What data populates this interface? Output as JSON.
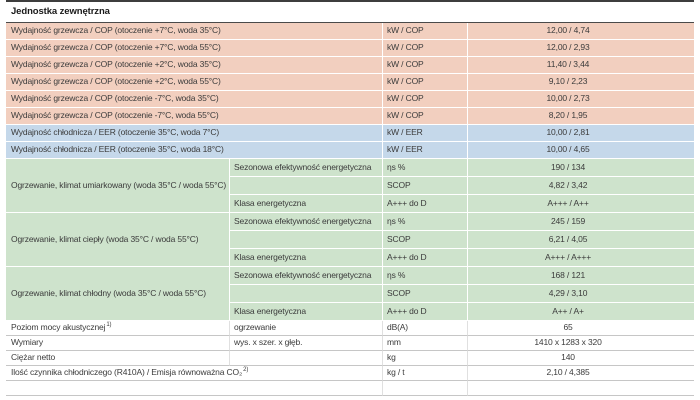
{
  "section_title": "Jednostka zewnętrzna",
  "colors": {
    "heating": "#f2cfbf",
    "cooling": "#c5d8ea",
    "seasonal": "#cee3cc"
  },
  "rows": [
    {
      "label": "Wydajność grzewcza / COP (otoczenie +7°C, woda 35°C)",
      "unit": "kW / COP",
      "value": "12,00 / 4,74"
    },
    {
      "label": "Wydajność grzewcza / COP (otoczenie +7°C, woda 55°C)",
      "unit": "kW / COP",
      "value": "12,00 / 2,93"
    },
    {
      "label": "Wydajność grzewcza / COP (otoczenie +2°C, woda 35°C)",
      "unit": "kW / COP",
      "value": "11,40 / 3,44"
    },
    {
      "label": "Wydajność grzewcza / COP (otoczenie +2°C, woda 55°C)",
      "unit": "kW / COP",
      "value": "9,10 / 2,23"
    },
    {
      "label": "Wydajność grzewcza / COP (otoczenie -7°C, woda 35°C)",
      "unit": "kW / COP",
      "value": "10,00 / 2,73"
    },
    {
      "label": "Wydajność grzewcza / COP (otoczenie -7°C, woda 55°C)",
      "unit": "kW / COP",
      "value": "8,20 / 1,95"
    },
    {
      "label": "Wydajność chłodnicza / EER (otoczenie 35°C, woda 7°C)",
      "unit": "kW / EER",
      "value": "10,00 / 2,81"
    },
    {
      "label": "Wydajność chłodnicza / EER (otoczenie 35°C, woda 18°C)",
      "unit": "kW / EER",
      "value": "10,00 / 4,65"
    }
  ],
  "groups": [
    {
      "label": "Ogrzewanie, klimat umiarkowany (woda 35°C / woda 55°C)",
      "rows": [
        {
          "sub": "Sezonowa efektywność energetyczna",
          "unit": "ηs %",
          "value": "190 / 134"
        },
        {
          "sub": "",
          "unit": "SCOP",
          "value": "4,82 / 3,42"
        },
        {
          "sub": "Klasa energetyczna",
          "unit": "A+++ do D",
          "value": "A+++ / A++"
        }
      ]
    },
    {
      "label": "Ogrzewanie, klimat ciepły (woda 35°C / woda 55°C)",
      "rows": [
        {
          "sub": "Sezonowa efektywność energetyczna",
          "unit": "ηs %",
          "value": "245 / 159"
        },
        {
          "sub": "",
          "unit": "SCOP",
          "value": "6,21 / 4,05"
        },
        {
          "sub": "Klasa energetyczna",
          "unit": "A+++ do D",
          "value": "A+++ / A+++"
        }
      ]
    },
    {
      "label": "Ogrzewanie, klimat chłodny (woda 35°C / woda 55°C)",
      "rows": [
        {
          "sub": "Sezonowa efektywność energetyczna",
          "unit": "ηs %",
          "value": "168 / 121"
        },
        {
          "sub": "",
          "unit": "SCOP",
          "value": "4,29 / 3,10"
        },
        {
          "sub": "Klasa energetyczna",
          "unit": "A+++ do D",
          "value": "A++ / A+"
        }
      ]
    }
  ],
  "info_rows": [
    {
      "label": "Poziom mocy akustycznej",
      "sup": "1)",
      "sub": "ogrzewanie",
      "unit": "dB(A)",
      "value": "65"
    },
    {
      "label": "Wymiary",
      "sup": "",
      "sub": "wys. x szer. x głęb.",
      "unit": "mm",
      "value": "1410 x 1283 x 320"
    },
    {
      "label": "Ciężar netto",
      "sup": "",
      "sub": "",
      "unit": "kg",
      "value": "140"
    },
    {
      "label": "Ilość czynnika chłodniczego (R410A) / Emisja równoważna CO₂",
      "sup": "2)",
      "sub": "",
      "unit": "kg / t",
      "value": "2,10 / 4,385"
    }
  ]
}
